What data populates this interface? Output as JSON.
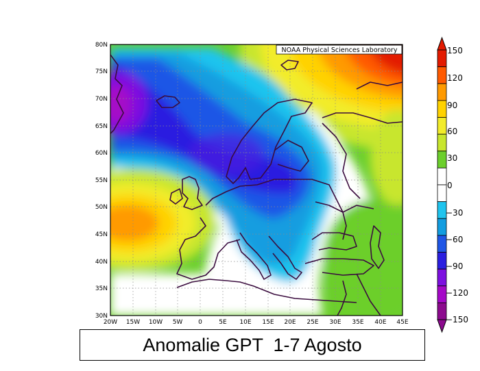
{
  "credit": "NOAA Physical Sciences Laboratory",
  "caption": "Anomalie GPT  1-7 Agosto",
  "lat_labels": [
    "80N",
    "75N",
    "70N",
    "65N",
    "60N",
    "55N",
    "50N",
    "45N",
    "40N",
    "35N",
    "30N"
  ],
  "lon_labels": [
    "20W",
    "15W",
    "10W",
    "5W",
    "0",
    "5E",
    "10E",
    "15E",
    "20E",
    "25E",
    "30E",
    "35E",
    "40E",
    "45E"
  ],
  "colorbar": {
    "labels": [
      "150",
      "120",
      "90",
      "60",
      "30",
      "0",
      "−30",
      "−60",
      "−90",
      "−120",
      "−150"
    ],
    "colors_top_to_bottom": [
      "#e31a00",
      "#ff5a00",
      "#ff9a00",
      "#ffd200",
      "#f2ec2a",
      "#c8e62d",
      "#6ccf2c",
      "#ffffff",
      "#ffffff",
      "#1fc4ee",
      "#129de0",
      "#1f56e6",
      "#2a1ee0",
      "#7d10e0",
      "#a508c8",
      "#8c0a8e"
    ]
  },
  "chart_data": {
    "type": "heatmap",
    "xlim": [
      "20W",
      "45E"
    ],
    "ylim": [
      "30N",
      "80N"
    ],
    "colorbar_range": [
      -150,
      150
    ],
    "colorbar_step": 15
  }
}
